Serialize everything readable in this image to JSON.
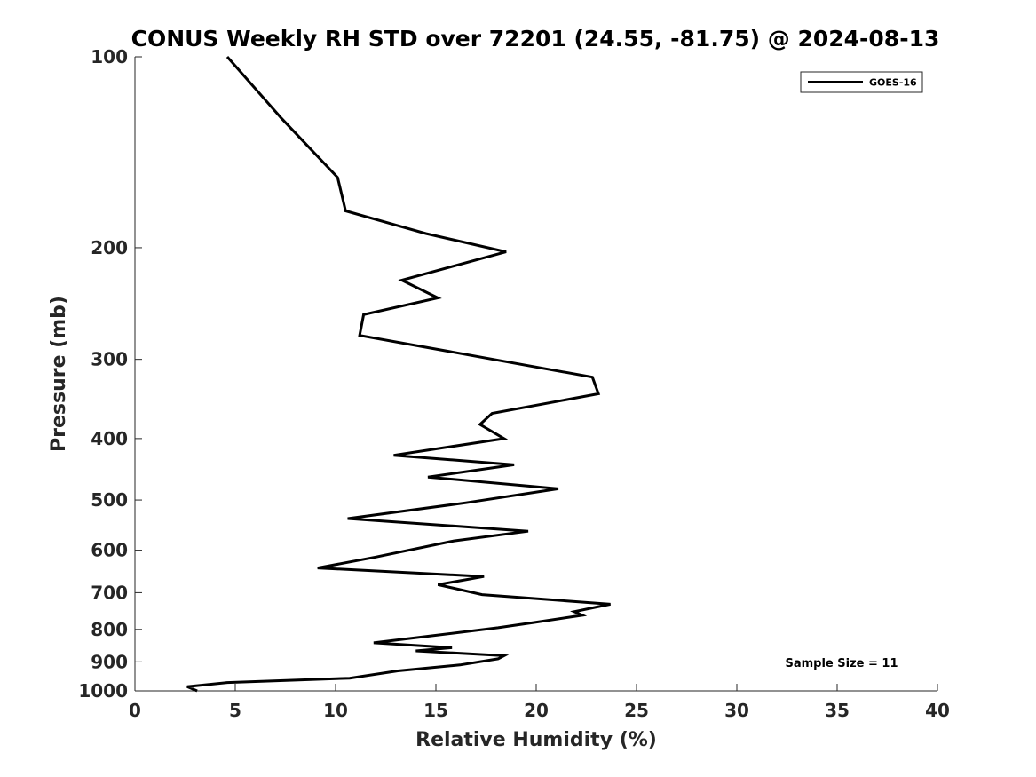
{
  "chart_data": {
    "type": "line",
    "title": "CONUS Weekly RH STD over 72201 (24.55, -81.75) @ 2024-08-13",
    "xlabel": "Relative Humidity (%)",
    "ylabel": "Pressure (mb)",
    "xlim": [
      0,
      40
    ],
    "ylim": [
      100,
      1000
    ],
    "y_scale": "log",
    "y_reversed": true,
    "x_ticks": [
      0,
      5,
      10,
      15,
      20,
      25,
      30,
      35,
      40
    ],
    "y_ticks": [
      100,
      200,
      300,
      400,
      500,
      600,
      700,
      800,
      900,
      1000
    ],
    "grid": false,
    "legend_position": "top-right",
    "series": [
      {
        "name": "GOES-16",
        "color": "#000000",
        "x": [
          4.6,
          7.3,
          10.1,
          10.5,
          14.5,
          18.5,
          13.3,
          15.1,
          11.4,
          11.2,
          22.8,
          23.1,
          17.8,
          17.2,
          18.4,
          12.9,
          18.9,
          14.6,
          21.1,
          16.5,
          10.6,
          19.6,
          15.9,
          12.0,
          9.1,
          17.4,
          15.1,
          17.3,
          23.7,
          21.9,
          22.3,
          19.9,
          18.1,
          11.9,
          15.8,
          14.0,
          18.4,
          18.1,
          16.2,
          13.1,
          10.7,
          4.6,
          2.6,
          3.1
        ],
        "y": [
          100,
          125,
          155,
          175,
          190,
          203,
          225,
          240,
          255,
          275,
          320,
          340,
          365,
          380,
          400,
          425,
          440,
          460,
          480,
          505,
          535,
          560,
          580,
          615,
          640,
          660,
          680,
          705,
          730,
          750,
          760,
          780,
          795,
          840,
          855,
          865,
          880,
          890,
          910,
          930,
          955,
          970,
          985,
          1000
        ]
      }
    ]
  },
  "annotations": {
    "sample_size": "Sample Size = 11"
  }
}
